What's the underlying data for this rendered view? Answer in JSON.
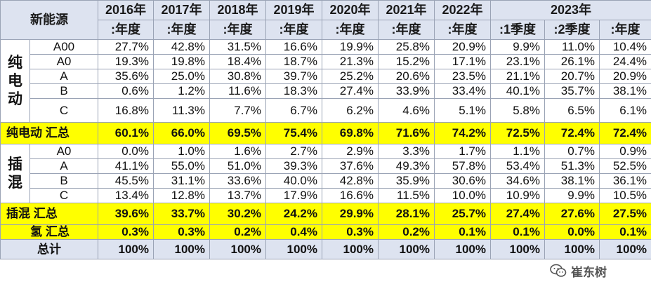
{
  "header": {
    "corner": "新能源",
    "years": [
      "2016年",
      "2017年",
      "2018年",
      "2019年",
      "2020年",
      "2021年",
      "2022年",
      "2023年"
    ],
    "periods": [
      ":年度",
      ":年度",
      ":年度",
      ":年度",
      ":年度",
      ":年度",
      ":年度",
      ":1季度",
      ":2季度",
      ":年度"
    ]
  },
  "groups": {
    "bev": "纯\n电\n动",
    "phev": "插\n混"
  },
  "rows": [
    {
      "label": "A00",
      "values": [
        "27.7%",
        "42.8%",
        "31.5%",
        "16.6%",
        "19.9%",
        "25.8%",
        "20.9%",
        "9.9%",
        "11.0%",
        "10.4%"
      ]
    },
    {
      "label": "A0",
      "values": [
        "19.3%",
        "19.8%",
        "18.4%",
        "18.7%",
        "21.3%",
        "15.2%",
        "17.1%",
        "23.1%",
        "26.1%",
        "24.4%"
      ]
    },
    {
      "label": "A",
      "values": [
        "35.6%",
        "25.0%",
        "30.8%",
        "39.7%",
        "25.2%",
        "20.6%",
        "23.5%",
        "21.1%",
        "20.7%",
        "20.9%"
      ]
    },
    {
      "label": "B",
      "values": [
        "0.6%",
        "1.2%",
        "11.6%",
        "18.3%",
        "27.4%",
        "33.9%",
        "33.4%",
        "40.1%",
        "35.7%",
        "38.1%"
      ]
    },
    {
      "label": "C",
      "values": [
        "16.8%",
        "11.3%",
        "7.7%",
        "6.7%",
        "6.2%",
        "4.6%",
        "5.1%",
        "5.8%",
        "6.5%",
        "6.1%"
      ]
    },
    {
      "label": "纯电动 汇总",
      "values": [
        "60.1%",
        "66.0%",
        "69.5%",
        "75.4%",
        "69.8%",
        "71.6%",
        "74.2%",
        "72.5%",
        "72.4%",
        "72.4%"
      ]
    },
    {
      "label": "A0",
      "values": [
        "0.0%",
        "1.0%",
        "1.6%",
        "2.7%",
        "2.9%",
        "3.3%",
        "1.7%",
        "1.1%",
        "0.7%",
        "0.9%"
      ]
    },
    {
      "label": "A",
      "values": [
        "41.1%",
        "55.0%",
        "51.0%",
        "39.3%",
        "37.6%",
        "49.3%",
        "57.8%",
        "53.4%",
        "51.3%",
        "52.5%"
      ]
    },
    {
      "label": "B",
      "values": [
        "45.5%",
        "31.1%",
        "33.6%",
        "40.0%",
        "42.8%",
        "35.9%",
        "30.6%",
        "34.6%",
        "38.1%",
        "36.1%"
      ]
    },
    {
      "label": "C",
      "values": [
        "13.4%",
        "12.8%",
        "13.7%",
        "17.9%",
        "16.6%",
        "11.5%",
        "10.0%",
        "10.9%",
        "9.9%",
        "10.5%"
      ]
    },
    {
      "label": "插混 汇总",
      "values": [
        "39.6%",
        "33.7%",
        "30.2%",
        "24.2%",
        "29.9%",
        "28.1%",
        "25.7%",
        "27.4%",
        "27.6%",
        "27.5%"
      ]
    },
    {
      "label": "氢 汇总",
      "values": [
        "0.3%",
        "0.3%",
        "0.2%",
        "0.4%",
        "0.3%",
        "0.2%",
        "0.1%",
        "0.1%",
        "0.0%",
        "0.1%"
      ]
    },
    {
      "label": "总计",
      "values": [
        "100%",
        "100%",
        "100%",
        "100%",
        "100%",
        "100%",
        "100%",
        "100%",
        "100%",
        "100%"
      ]
    }
  ],
  "colors": {
    "header_bg": "#dde3f0",
    "summary_bg": "#ffff00",
    "border": "#9aa3b5"
  },
  "watermark": {
    "icon": "wechat-logo-icon",
    "text": "崔东树"
  }
}
